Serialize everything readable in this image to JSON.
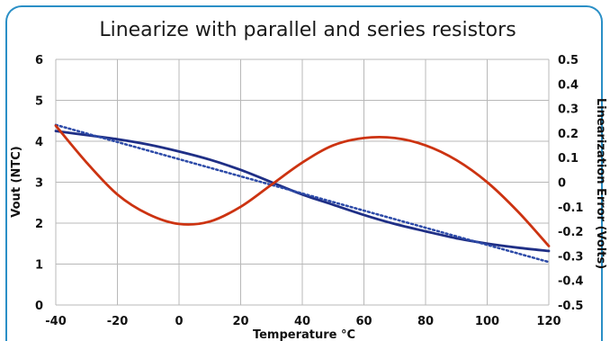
{
  "chart_data": {
    "type": "line",
    "title": "Linearize with parallel and series resistors",
    "xlabel": "Temperature °C",
    "ylabel_left": "Vout (NTC)",
    "ylabel_right": "Linearization Error (Volts)",
    "x_ticks": [
      "-40",
      "-20",
      "0",
      "20",
      "40",
      "60",
      "80",
      "100",
      "120"
    ],
    "y_left_ticks": [
      "0",
      "1",
      "2",
      "3",
      "4",
      "5",
      "6"
    ],
    "y_right_ticks": [
      "-0.5",
      "-0.4",
      "-0.3",
      "-0.2",
      "-0.1",
      "0",
      "0.1",
      "0.2",
      "0.3",
      "0.4",
      "0.5"
    ],
    "xlim": [
      -40,
      120
    ],
    "ylim_left": [
      0,
      6
    ],
    "ylim_right": [
      -0.5,
      0.5
    ],
    "grid": true,
    "series": [
      {
        "axis": "left",
        "color": "#1f2f86",
        "style": "solid",
        "x": [
          -40,
          -30,
          -20,
          -10,
          0,
          10,
          20,
          30,
          40,
          50,
          60,
          70,
          80,
          90,
          100,
          110,
          120
        ],
        "values": [
          4.25,
          4.15,
          4.05,
          3.92,
          3.75,
          3.55,
          3.3,
          3.0,
          2.7,
          2.45,
          2.2,
          1.98,
          1.8,
          1.63,
          1.5,
          1.4,
          1.32
        ]
      },
      {
        "axis": "left",
        "color": "#2c4aa8",
        "style": "dotted",
        "x": [
          -40,
          120
        ],
        "values": [
          4.4,
          1.05
        ]
      },
      {
        "axis": "right",
        "color": "#cc3311",
        "style": "solid",
        "x": [
          -40,
          -30,
          -20,
          -10,
          0,
          10,
          20,
          30,
          40,
          50,
          60,
          70,
          80,
          90,
          100,
          110,
          120
        ],
        "values": [
          0.23,
          0.08,
          -0.05,
          -0.13,
          -0.17,
          -0.16,
          -0.1,
          -0.01,
          0.08,
          0.15,
          0.18,
          0.18,
          0.15,
          0.09,
          0.0,
          -0.12,
          -0.26
        ]
      }
    ]
  }
}
